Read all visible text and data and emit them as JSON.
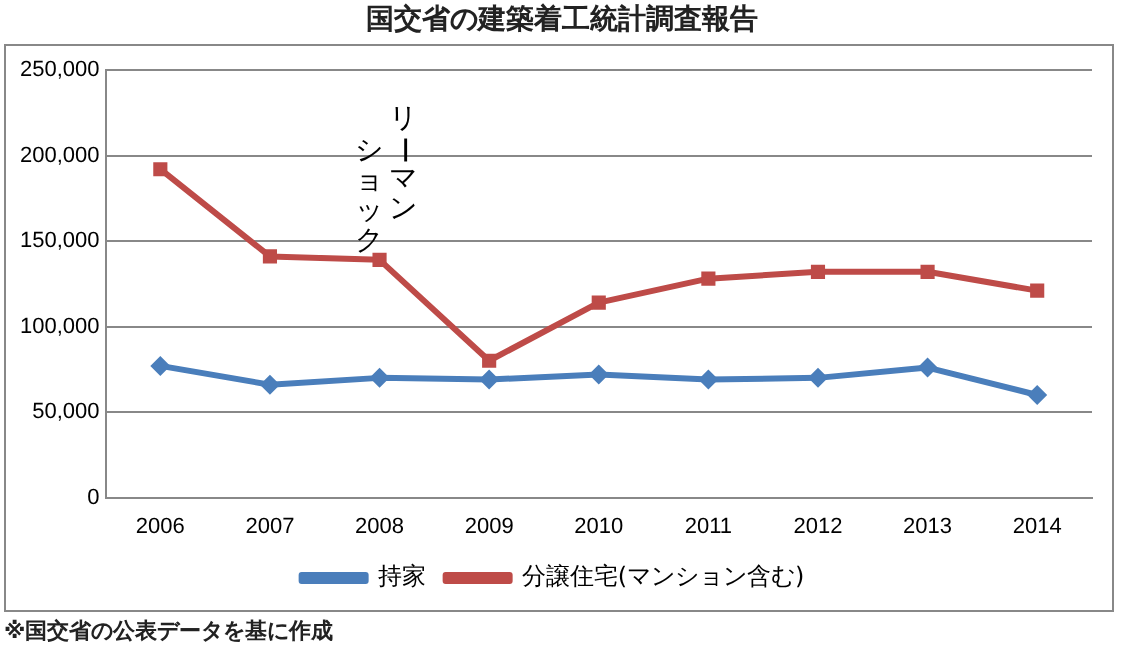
{
  "chart_data": {
    "type": "line",
    "title": "国交省の建築着工統計調査報告",
    "categories": [
      "2006",
      "2007",
      "2008",
      "2009",
      "2010",
      "2011",
      "2012",
      "2013",
      "2014"
    ],
    "series": [
      {
        "name": "持家",
        "color": "#4a7ebb",
        "marker": "diamond",
        "values": [
          77000,
          66000,
          70000,
          69000,
          72000,
          69000,
          70000,
          76000,
          60000
        ]
      },
      {
        "name": "分譲住宅(マンション含む)",
        "color": "#be4b48",
        "marker": "square",
        "values": [
          192000,
          141000,
          139000,
          80000,
          114000,
          128000,
          132000,
          132000,
          121000
        ]
      }
    ],
    "ylim": [
      0,
      250000
    ],
    "yticks": [
      0,
      {
        "value": 50000,
        "label": "50,000"
      },
      {
        "value": 100000,
        "label": "100,000"
      },
      {
        "value": 150000,
        "label": "150,000"
      },
      {
        "value": 200000,
        "label": "200,000"
      },
      {
        "value": 250000,
        "label": "250,000"
      }
    ],
    "grid": "y",
    "legend": "bottom",
    "line_style": "solid",
    "annotations": [
      "リーマンショック",
      "※国交省の公表データを基に作成"
    ]
  }
}
